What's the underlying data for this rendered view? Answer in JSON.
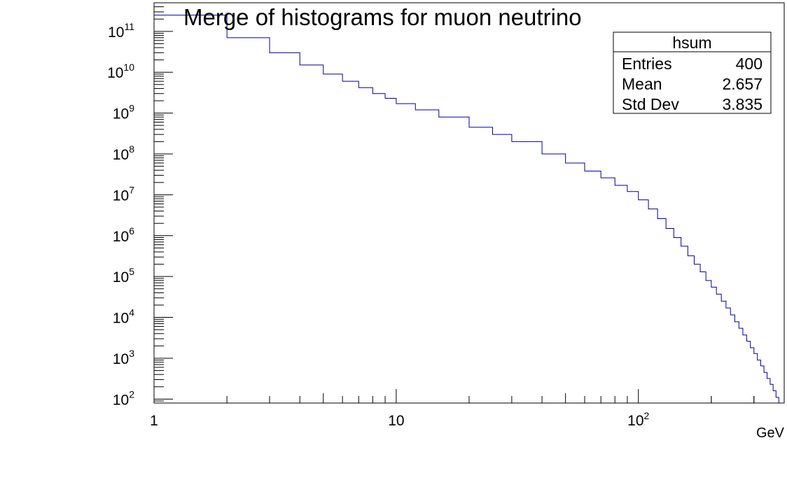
{
  "chart_data": {
    "type": "histogram",
    "title": "Merge of histograms for muon neutrino",
    "xlabel": "GeV",
    "ylabel": "",
    "xscale": "log",
    "yscale": "log",
    "xlim": [
      1,
      400
    ],
    "ylim": [
      80,
      500000000000.0
    ],
    "line_color": "#000099",
    "x_ticks": [
      {
        "value": 1,
        "base": "1",
        "exp": ""
      },
      {
        "value": 10,
        "base": "10",
        "exp": ""
      },
      {
        "value": 100,
        "base": "10",
        "exp": "2"
      }
    ],
    "y_ticks": [
      {
        "value": 100,
        "base": "10",
        "exp": "2"
      },
      {
        "value": 1000,
        "base": "10",
        "exp": "3"
      },
      {
        "value": 10000,
        "base": "10",
        "exp": "4"
      },
      {
        "value": 100000,
        "base": "10",
        "exp": "5"
      },
      {
        "value": 1000000,
        "base": "10",
        "exp": "6"
      },
      {
        "value": 10000000,
        "base": "10",
        "exp": "7"
      },
      {
        "value": 100000000,
        "base": "10",
        "exp": "8"
      },
      {
        "value": 1000000000,
        "base": "10",
        "exp": "9"
      },
      {
        "value": 10000000000,
        "base": "10",
        "exp": "10"
      },
      {
        "value": 100000000000,
        "base": "10",
        "exp": "11"
      }
    ],
    "bin_width": 1,
    "bin_start": 1,
    "bins": [
      {
        "x": 1,
        "y": 250000000000.0
      },
      {
        "x": 2,
        "y": 70000000000.0
      },
      {
        "x": 3,
        "y": 30000000000.0
      },
      {
        "x": 4,
        "y": 15000000000.0
      },
      {
        "x": 5,
        "y": 9000000000.0
      },
      {
        "x": 6,
        "y": 6000000000.0
      },
      {
        "x": 7,
        "y": 4200000000.0
      },
      {
        "x": 8,
        "y": 3000000000.0
      },
      {
        "x": 9,
        "y": 2300000000.0
      },
      {
        "x": 10,
        "y": 1700000000.0
      },
      {
        "x": 12,
        "y": 1200000000.0
      },
      {
        "x": 15,
        "y": 800000000.0
      },
      {
        "x": 20,
        "y": 450000000.0
      },
      {
        "x": 25,
        "y": 300000000.0
      },
      {
        "x": 30,
        "y": 200000000.0
      },
      {
        "x": 40,
        "y": 100000000.0
      },
      {
        "x": 50,
        "y": 60000000.0
      },
      {
        "x": 60,
        "y": 38000000.0
      },
      {
        "x": 70,
        "y": 26000000.0
      },
      {
        "x": 80,
        "y": 17000000.0
      },
      {
        "x": 90,
        "y": 12000000.0
      },
      {
        "x": 100,
        "y": 7500000.0
      },
      {
        "x": 110,
        "y": 4500000.0
      },
      {
        "x": 120,
        "y": 2600000.0
      },
      {
        "x": 130,
        "y": 1500000.0
      },
      {
        "x": 140,
        "y": 900000.0
      },
      {
        "x": 150,
        "y": 550000.0
      },
      {
        "x": 160,
        "y": 320000.0
      },
      {
        "x": 170,
        "y": 200000.0
      },
      {
        "x": 180,
        "y": 130000.0
      },
      {
        "x": 190,
        "y": 80000.0
      },
      {
        "x": 200,
        "y": 55000.0
      },
      {
        "x": 210,
        "y": 37000.0
      },
      {
        "x": 220,
        "y": 25000.0
      },
      {
        "x": 230,
        "y": 17000.0
      },
      {
        "x": 240,
        "y": 11500.0
      },
      {
        "x": 250,
        "y": 7800.0
      },
      {
        "x": 260,
        "y": 5400.0
      },
      {
        "x": 270,
        "y": 3700.0
      },
      {
        "x": 280,
        "y": 2600.0
      },
      {
        "x": 290,
        "y": 1800.0
      },
      {
        "x": 300,
        "y": 1300.0
      },
      {
        "x": 310,
        "y": 900
      },
      {
        "x": 320,
        "y": 650
      },
      {
        "x": 330,
        "y": 450
      },
      {
        "x": 340,
        "y": 320
      },
      {
        "x": 350,
        "y": 230
      },
      {
        "x": 360,
        "y": 160
      },
      {
        "x": 370,
        "y": 110
      }
    ],
    "stats_box": {
      "name": "hsum",
      "placement": "top-right",
      "rows": [
        {
          "label": "Entries",
          "value": "400"
        },
        {
          "label": "Mean",
          "value": "2.657"
        },
        {
          "label": "Std Dev",
          "value": "3.835"
        }
      ]
    }
  }
}
